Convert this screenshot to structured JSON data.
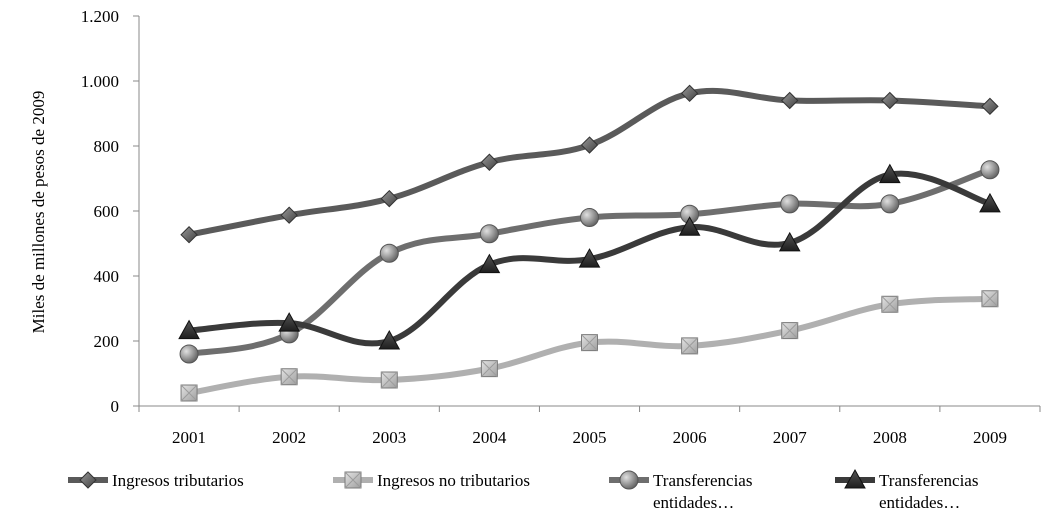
{
  "chart_data": {
    "type": "line",
    "ylabel": "Miles de millones de pesos de 2009",
    "xlabel": "",
    "categories": [
      "2001",
      "2002",
      "2003",
      "2004",
      "2005",
      "2006",
      "2007",
      "2008",
      "2009"
    ],
    "ylim": [
      0,
      1200
    ],
    "yticks": [
      0,
      200,
      400,
      600,
      800,
      1000,
      1200
    ],
    "ytick_labels": [
      "0",
      "200",
      "400",
      "600",
      "800",
      "1.000",
      "1.200"
    ],
    "grid": false,
    "legend_position": "bottom",
    "series": [
      {
        "name": "Ingresos tributarios",
        "marker": "diamond",
        "color": "#5a5a5a",
        "values": [
          527,
          587,
          638,
          750,
          803,
          962,
          940,
          940,
          922
        ]
      },
      {
        "name": "Ingresos no tributarios",
        "marker": "square",
        "color": "#b0b0b0",
        "values": [
          40,
          90,
          80,
          115,
          195,
          185,
          232,
          313,
          330
        ]
      },
      {
        "name": "Transferencias entidades…",
        "marker": "circle",
        "color": "#6e6e6e",
        "values": [
          160,
          222,
          470,
          530,
          580,
          590,
          622,
          622,
          727
        ]
      },
      {
        "name": "Transferencias entidades…",
        "marker": "triangle",
        "color": "#3a3a3a",
        "values": [
          232,
          255,
          200,
          435,
          452,
          550,
          502,
          712,
          622
        ]
      }
    ]
  }
}
